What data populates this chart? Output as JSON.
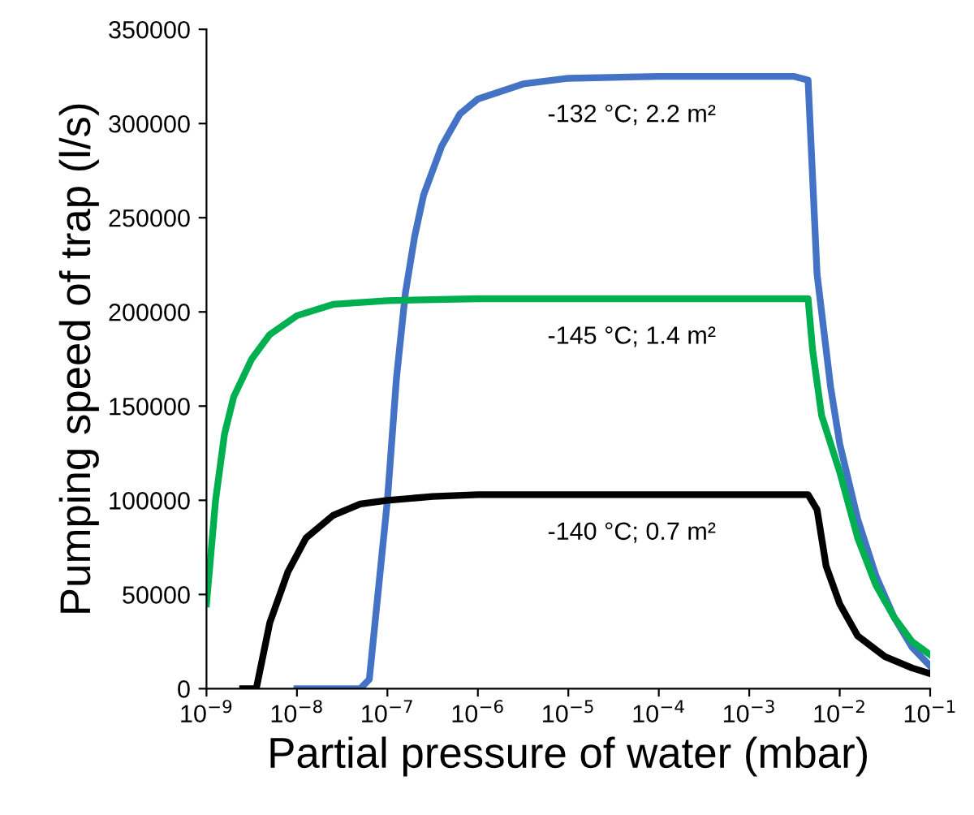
{
  "chart_data": {
    "type": "line",
    "xlabel": "Partial pressure of water (mbar)",
    "ylabel": "Pumping speed of trap (l/s)",
    "log": "x",
    "xlim": [
      1e-09,
      0.1
    ],
    "xticks": [
      {
        "value": 1e-09,
        "label": "10$^{−9}$"
      },
      {
        "value": 1e-08,
        "label": "10$^{−8}$"
      },
      {
        "value": 1e-07,
        "label": "10$^{−7}$"
      },
      {
        "value": 1e-06,
        "label": "10$^{−6}$"
      },
      {
        "value": 1e-05,
        "label": "10$^{−5}$"
      },
      {
        "value": 0.0001,
        "label": "10$^{−4}$"
      },
      {
        "value": 0.001,
        "label": "10$^{−3}$"
      },
      {
        "value": 0.01,
        "label": "10$^{−2}$"
      },
      {
        "value": 0.1,
        "label": "10$^{−1}$"
      }
    ],
    "ylim": [
      0,
      350000
    ],
    "yticks": [
      0,
      50000,
      100000,
      150000,
      200000,
      250000,
      300000,
      350000
    ],
    "grid": false,
    "legend": false,
    "marker": "none",
    "line_style": "solid",
    "series": [
      {
        "name": "-132 °C; 2.2 m²",
        "color": "#4472c4",
        "x": [
          1e-08,
          5.01e-08,
          6.31e-08,
          1e-07,
          1.26e-07,
          1.58e-07,
          2e-07,
          2.51e-07,
          3.98e-07,
          6.31e-07,
          1e-06,
          3.16e-06,
          1e-05,
          0.0001,
          0.00316,
          0.00447,
          0.00562,
          0.00794,
          0.01,
          0.0158,
          0.0251,
          0.0398,
          0.0631,
          0.1
        ],
        "values": [
          0,
          0,
          5000,
          100000,
          165000,
          210000,
          240000,
          262000,
          288000,
          305000,
          313000,
          321000,
          324000,
          325000,
          325000,
          323000,
          220000,
          160000,
          130000,
          90000,
          60000,
          38000,
          22000,
          12000
        ]
      },
      {
        "name": "-145 °C; 1.4 m²",
        "color": "#00b050",
        "x": [
          1e-09,
          1.26e-09,
          1.58e-09,
          2e-09,
          3.16e-09,
          5.01e-09,
          1e-08,
          2.51e-08,
          1e-07,
          1e-06,
          0.00447,
          0.00501,
          0.00631,
          0.01,
          0.0158,
          0.0251,
          0.0398,
          0.0631,
          0.1
        ],
        "values": [
          45000,
          100000,
          135000,
          155000,
          175000,
          188000,
          198000,
          204000,
          206000,
          207000,
          207000,
          180000,
          145000,
          115000,
          80000,
          55000,
          38000,
          25000,
          18000
        ]
      },
      {
        "name": "-140 °C; 0.7 m²",
        "color": "#000000",
        "x": [
          2.51e-09,
          3.55e-09,
          5.01e-09,
          7.94e-09,
          1.26e-08,
          2.51e-08,
          5.01e-08,
          1e-07,
          3.16e-07,
          1e-06,
          0.00447,
          0.00562,
          0.00708,
          0.01,
          0.0158,
          0.0316,
          0.0631,
          0.1
        ],
        "values": [
          0,
          0,
          35000,
          62000,
          80000,
          92000,
          98000,
          100000,
          102000,
          103000,
          103000,
          95000,
          65000,
          45000,
          28000,
          17000,
          11000,
          8000
        ]
      }
    ]
  }
}
